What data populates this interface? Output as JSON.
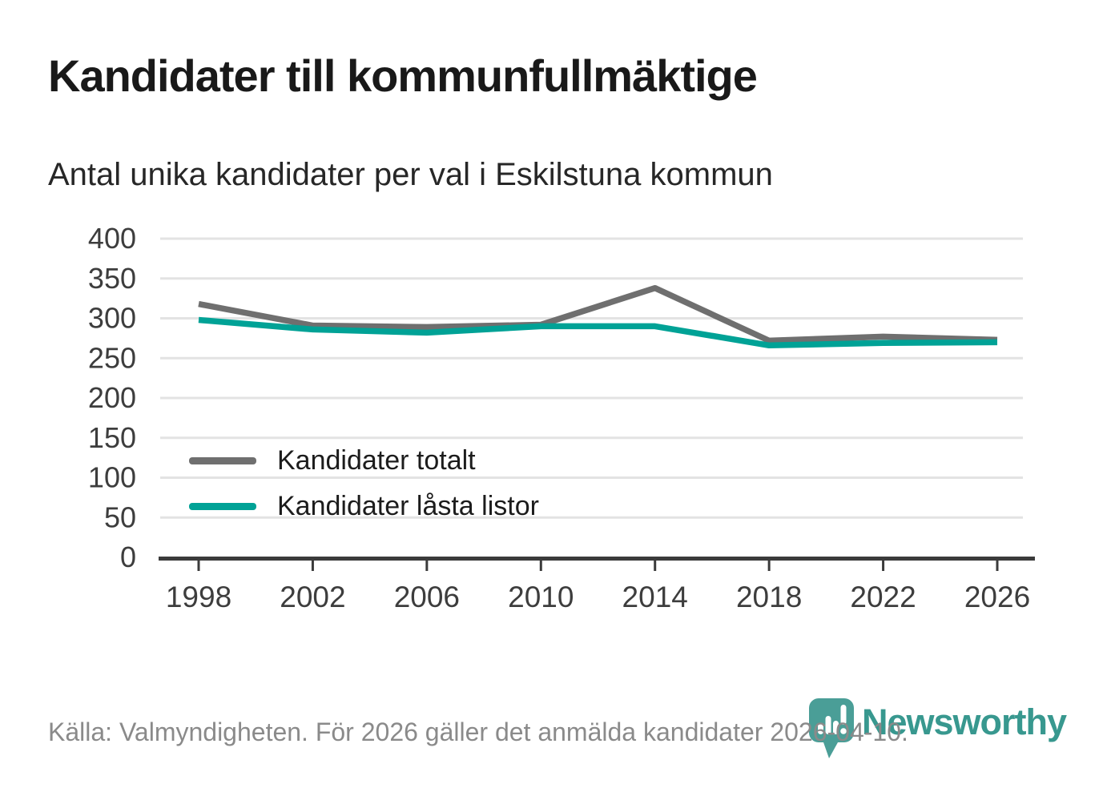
{
  "header": {
    "title": "Kandidater till kommunfullmäktige",
    "subtitle": "Antal unika kandidater per val i Eskilstuna kommun"
  },
  "chart_data": {
    "type": "line",
    "title": "Kandidater till kommunfullmäktige",
    "subtitle": "Antal unika kandidater per val i Eskilstuna kommun",
    "categories": [
      "1998",
      "2002",
      "2006",
      "2010",
      "2014",
      "2018",
      "2022",
      "2026"
    ],
    "series": [
      {
        "name": "Kandidater totalt",
        "color": "#6f6f6f",
        "values": [
          318,
          291,
          289,
          292,
          338,
          272,
          277,
          273
        ]
      },
      {
        "name": "Kandidater låsta listor",
        "color": "#00a296",
        "values": [
          298,
          286,
          282,
          290,
          290,
          266,
          269,
          270
        ]
      }
    ],
    "xlabel": "",
    "ylabel": "",
    "ylim": [
      0,
      400
    ],
    "yticks": [
      0,
      50,
      100,
      150,
      200,
      250,
      300,
      350,
      400
    ],
    "grid": true,
    "legend_position": "inside-left"
  },
  "footer": {
    "source": "Källa: Valmyndigheten. För 2026 gäller det anmälda kandidater 2026-04-10.",
    "brand": "Newsworthy"
  },
  "colors": {
    "grid": "#e3e3e3",
    "axis": "#3b3b3b",
    "tick_label": "#3d3d3d",
    "brand_teal": "#4a9e97",
    "brand_text": "#38988f"
  }
}
